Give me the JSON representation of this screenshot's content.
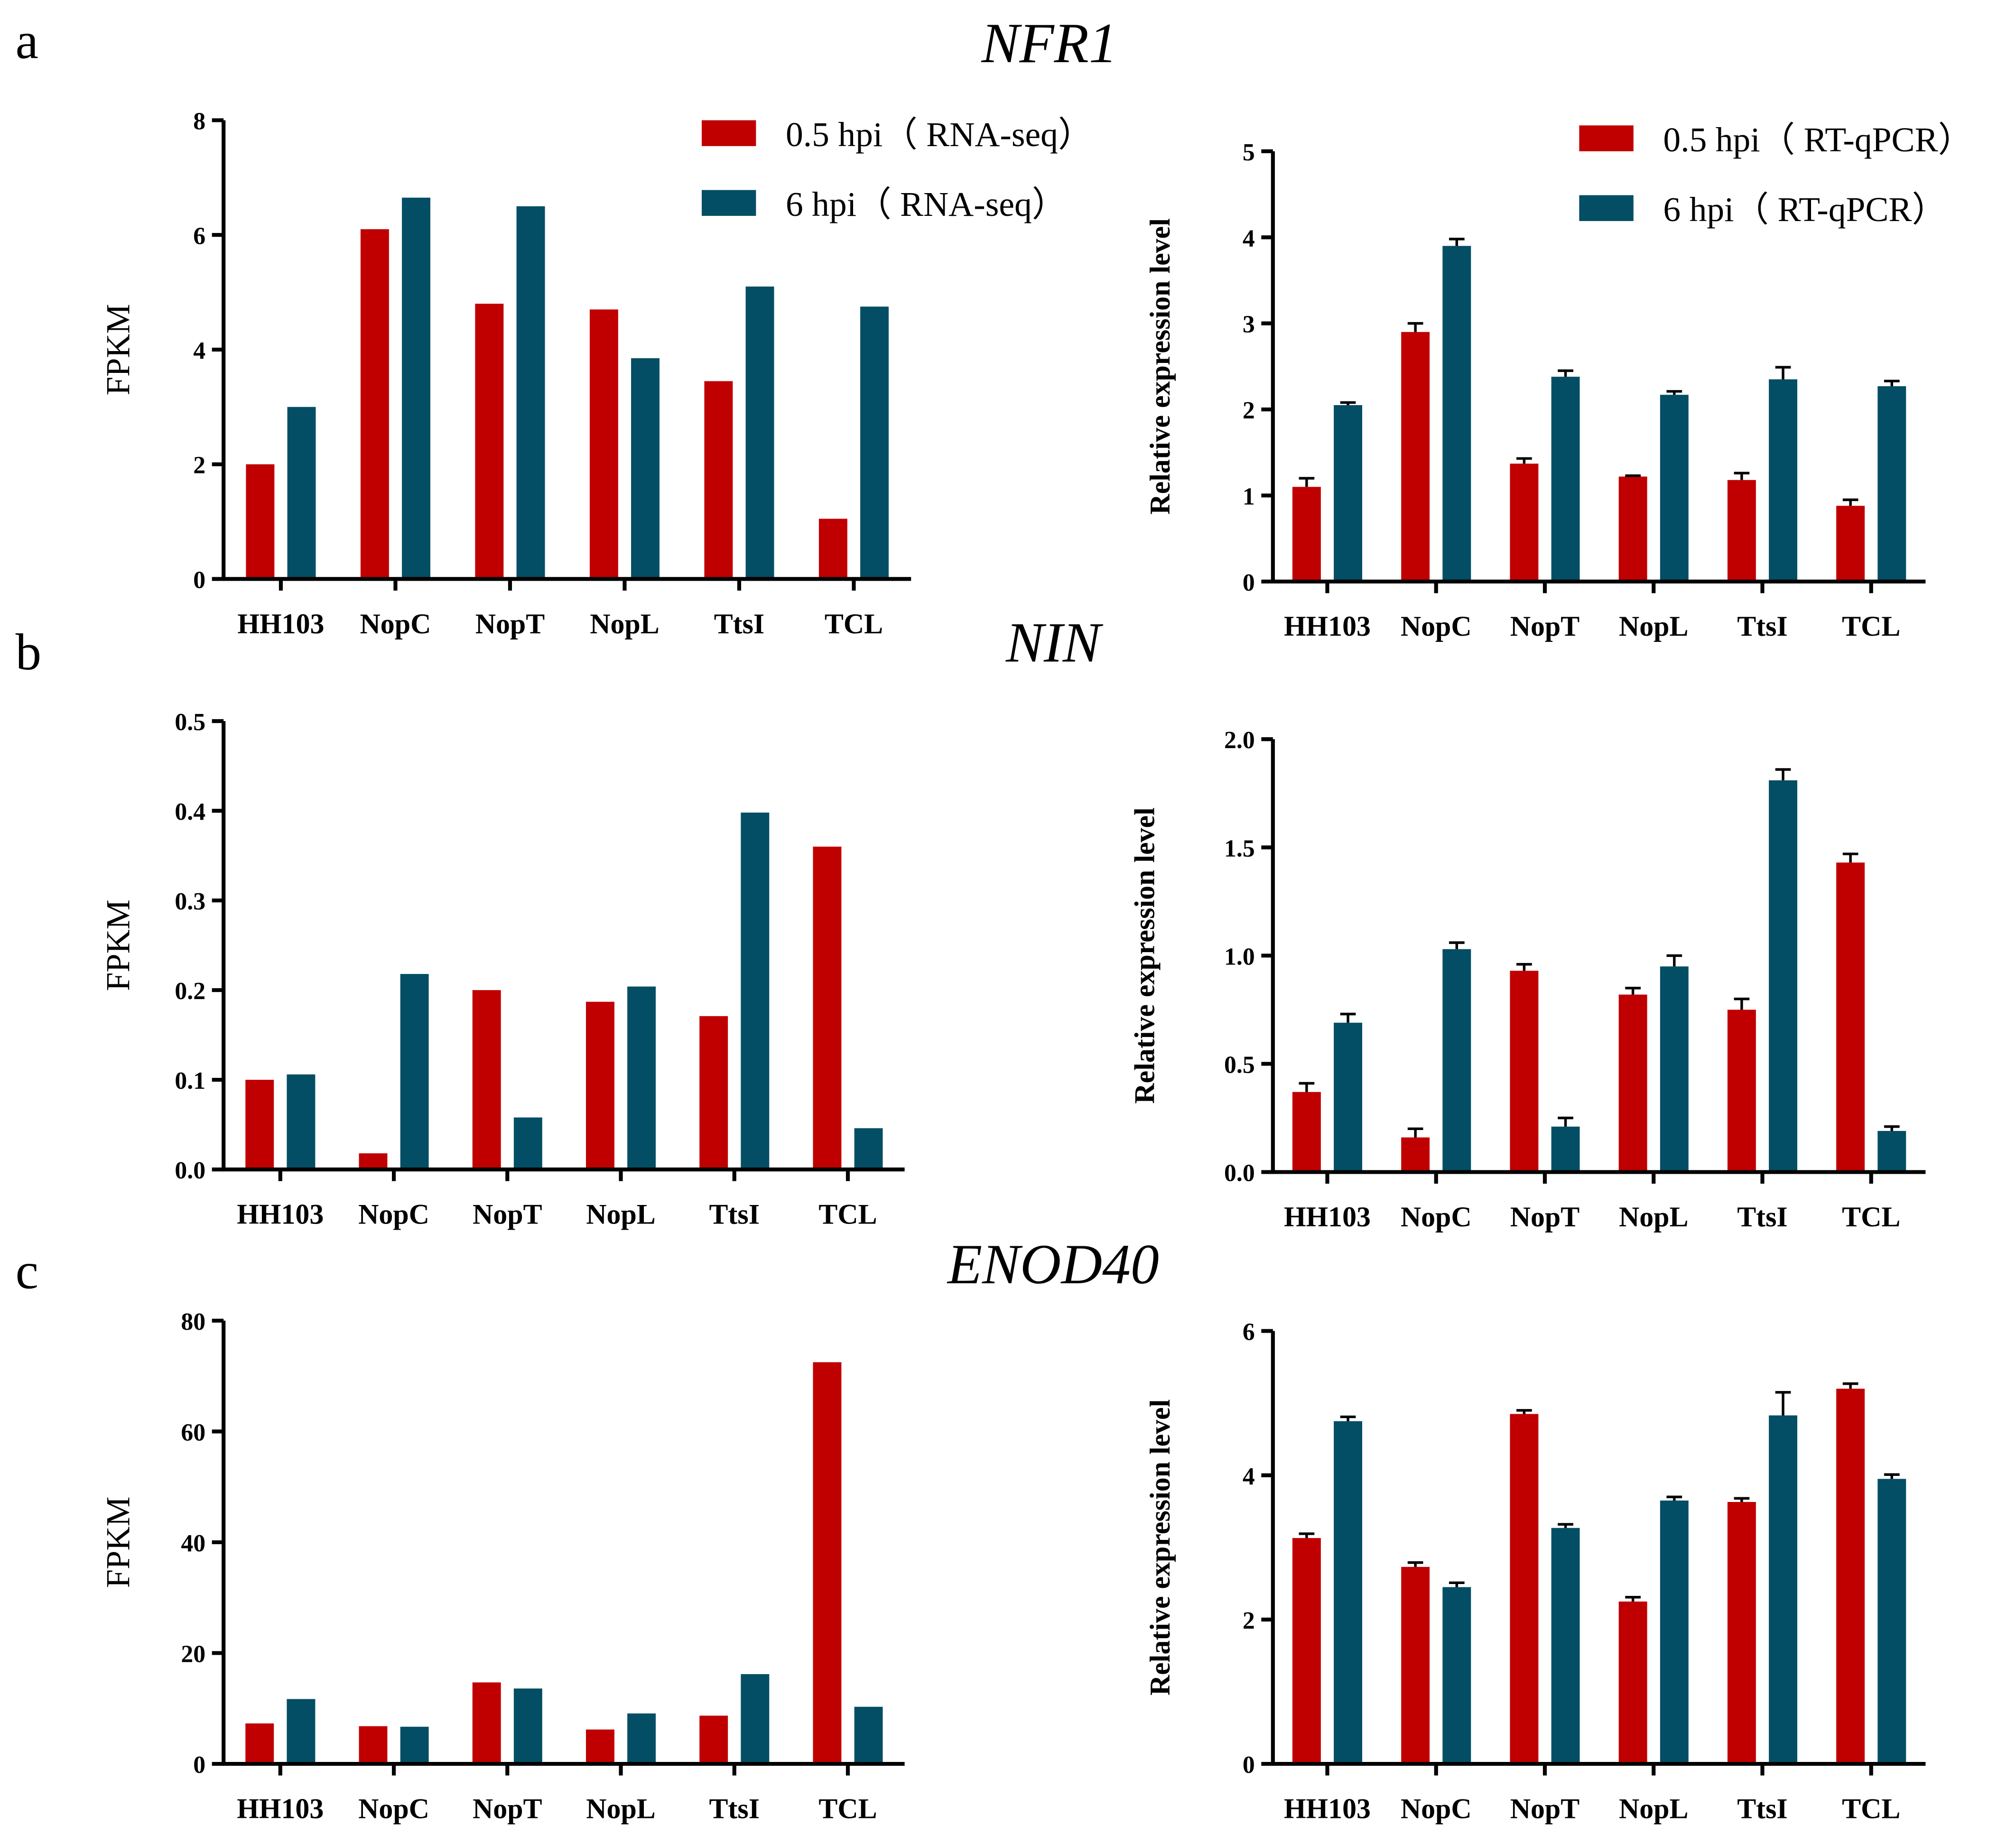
{
  "colors": {
    "red": "#c00000",
    "teal": "#034e64"
  },
  "panel_letters": [
    "a",
    "b",
    "c"
  ],
  "genes": [
    "NFR1",
    "NIN",
    "ENOD40"
  ],
  "chart_data": [
    {
      "id": "a-left",
      "type": "bar",
      "title": "NFR1",
      "ylabel": "FPKM",
      "ylim": [
        0,
        8
      ],
      "yticks": [
        "0",
        "2",
        "4",
        "6",
        "8"
      ],
      "categories": [
        "HH103",
        "NopC",
        "NopT",
        "NopL",
        "TtsI",
        "TCL"
      ],
      "legend": [
        "0.5 hpi（ RNA-seq）",
        "6 hpi（ RNA-seq）"
      ],
      "series": [
        {
          "name": "0.5 hpi（ RNA-seq）",
          "values": [
            2.0,
            6.1,
            4.8,
            4.7,
            3.45,
            1.05
          ]
        },
        {
          "name": "6 hpi（ RNA-seq）",
          "values": [
            3.0,
            6.65,
            6.5,
            3.85,
            5.1,
            4.75
          ]
        }
      ]
    },
    {
      "id": "a-right",
      "type": "bar",
      "ylabel": "Relative expression level",
      "ylim": [
        0,
        5
      ],
      "yticks": [
        "0",
        "1",
        "2",
        "3",
        "4",
        "5"
      ],
      "categories": [
        "HH103",
        "NopC",
        "NopT",
        "NopL",
        "TtsI",
        "TCL"
      ],
      "legend": [
        "0.5 hpi（ RT-qPCR）",
        "6 hpi（ RT-qPCR）"
      ],
      "series": [
        {
          "name": "0.5 hpi（ RT-qPCR）",
          "values": [
            1.1,
            2.9,
            1.37,
            1.22,
            1.18,
            0.88
          ],
          "errors": [
            0.1,
            0.1,
            0.06,
            0.01,
            0.08,
            0.07
          ]
        },
        {
          "name": "6 hpi（ RT-qPCR）",
          "values": [
            2.05,
            3.9,
            2.38,
            2.17,
            2.35,
            2.27
          ],
          "errors": [
            0.03,
            0.08,
            0.07,
            0.04,
            0.14,
            0.06
          ]
        }
      ]
    },
    {
      "id": "b-left",
      "type": "bar",
      "title": "NIN",
      "ylabel": "FPKM",
      "ylim": [
        0,
        0.5
      ],
      "yticks": [
        "0.0",
        "0.1",
        "0.2",
        "0.3",
        "0.4",
        "0.5"
      ],
      "categories": [
        "HH103",
        "NopC",
        "NopT",
        "NopL",
        "TtsI",
        "TCL"
      ],
      "series": [
        {
          "name": "0.5 hpi",
          "values": [
            0.1,
            0.018,
            0.2,
            0.187,
            0.171,
            0.36
          ]
        },
        {
          "name": "6 hpi",
          "values": [
            0.106,
            0.218,
            0.058,
            0.204,
            0.398,
            0.046
          ]
        }
      ]
    },
    {
      "id": "b-right",
      "type": "bar",
      "ylabel": "Relative expression level",
      "ylim": [
        0,
        2
      ],
      "yticks": [
        "0.0",
        "0.5",
        "1.0",
        "1.5",
        "2.0"
      ],
      "categories": [
        "HH103",
        "NopC",
        "NopT",
        "NopL",
        "TtsI",
        "TCL"
      ],
      "series": [
        {
          "name": "0.5 hpi",
          "values": [
            0.37,
            0.16,
            0.93,
            0.82,
            0.75,
            1.43
          ],
          "errors": [
            0.04,
            0.04,
            0.03,
            0.03,
            0.05,
            0.04
          ]
        },
        {
          "name": "6 hpi",
          "values": [
            0.69,
            1.03,
            0.21,
            0.95,
            1.81,
            0.19
          ],
          "errors": [
            0.04,
            0.03,
            0.04,
            0.05,
            0.05,
            0.02
          ]
        }
      ]
    },
    {
      "id": "c-left",
      "type": "bar",
      "title": "ENOD40",
      "ylabel": "FPKM",
      "ylim": [
        0,
        80
      ],
      "yticks": [
        "0",
        "20",
        "40",
        "60",
        "80"
      ],
      "categories": [
        "HH103",
        "NopC",
        "NopT",
        "NopL",
        "TtsI",
        "TCL"
      ],
      "series": [
        {
          "name": "0.5 hpi",
          "values": [
            7.3,
            6.8,
            14.7,
            6.2,
            8.7,
            72.5
          ]
        },
        {
          "name": "6 hpi",
          "values": [
            11.7,
            6.7,
            13.6,
            9.1,
            16.2,
            10.3
          ]
        }
      ]
    },
    {
      "id": "c-right",
      "type": "bar",
      "ylabel": "Relative expression level",
      "ylim": [
        0,
        6
      ],
      "yticks": [
        "0",
        "2",
        "4",
        "6"
      ],
      "categories": [
        "HH103",
        "NopC",
        "NopT",
        "NopL",
        "TtsI",
        "TCL"
      ],
      "series": [
        {
          "name": "0.5 hpi",
          "values": [
            3.13,
            2.73,
            4.85,
            2.25,
            3.63,
            5.2
          ],
          "errors": [
            0.06,
            0.06,
            0.05,
            0.06,
            0.05,
            0.07
          ]
        },
        {
          "name": "6 hpi",
          "values": [
            4.75,
            2.45,
            3.27,
            3.65,
            4.83,
            3.95
          ],
          "errors": [
            0.06,
            0.06,
            0.05,
            0.05,
            0.32,
            0.06
          ]
        }
      ]
    }
  ]
}
